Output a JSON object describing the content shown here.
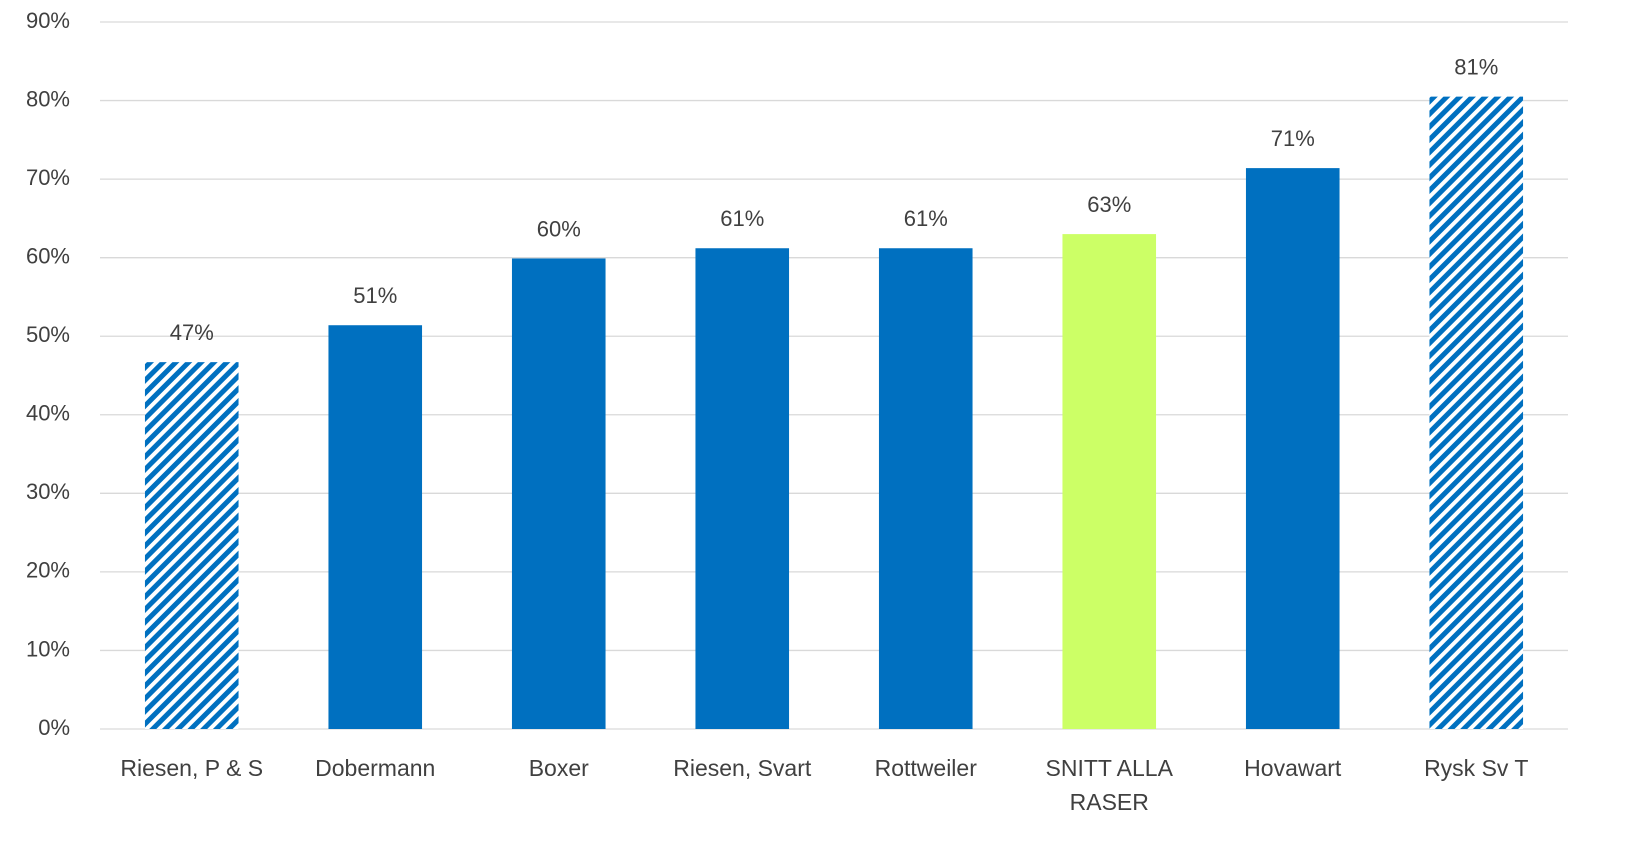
{
  "chart_data": {
    "type": "bar",
    "categories": [
      "Riesen, P & S",
      "Dobermann",
      "Boxer",
      "Riesen, Svart",
      "Rottweiler",
      "SNITT ALLA RASER",
      "Hovawart",
      "Rysk Sv T"
    ],
    "values": [
      46.7,
      51.4,
      59.9,
      61.2,
      61.2,
      63.0,
      71.4,
      80.5
    ],
    "value_labels": [
      "47%",
      "51%",
      "60%",
      "61%",
      "61%",
      "63%",
      "71%",
      "81%"
    ],
    "colors": [
      "#0070c0",
      "#0070c0",
      "#0070c0",
      "#0070c0",
      "#0070c0",
      "#ccff66",
      "#0070c0",
      "#0070c0"
    ],
    "hatched": [
      true,
      false,
      false,
      false,
      false,
      false,
      false,
      true
    ],
    "ylim": [
      0,
      90
    ],
    "yticks": [
      {
        "value": 0,
        "label": "0%"
      },
      {
        "value": 10,
        "label": "10%"
      },
      {
        "value": 20,
        "label": "20%"
      },
      {
        "value": 30,
        "label": "30%"
      },
      {
        "value": 40,
        "label": "40%"
      },
      {
        "value": 50,
        "label": "50%"
      },
      {
        "value": 60,
        "label": "60%"
      },
      {
        "value": 70,
        "label": "70%"
      },
      {
        "value": 80,
        "label": "80%"
      },
      {
        "value": 90,
        "label": "90%"
      }
    ],
    "grid": true
  }
}
